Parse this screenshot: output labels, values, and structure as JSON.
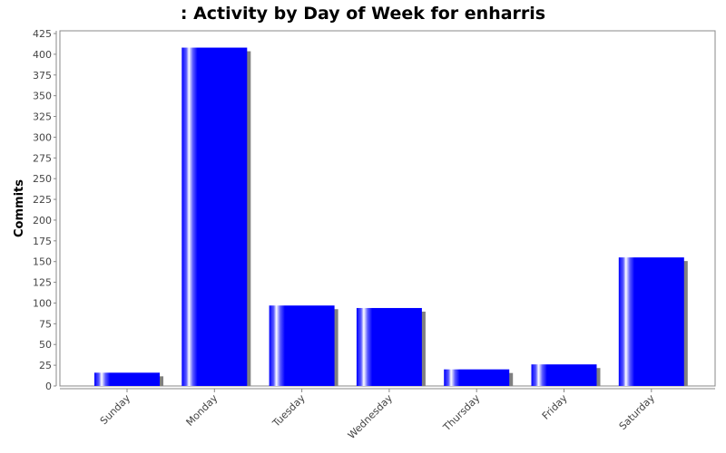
{
  "chart_data": {
    "type": "bar",
    "title": ": Activity by Day of Week for enharris",
    "xlabel": "",
    "ylabel": "Commits",
    "categories": [
      "Sunday",
      "Monday",
      "Tuesday",
      "Wednesday",
      "Thursday",
      "Friday",
      "Saturday"
    ],
    "values": [
      16,
      408,
      97,
      94,
      20,
      26,
      155
    ],
    "ylim": [
      0,
      425
    ],
    "yticks": [
      0,
      25,
      50,
      75,
      100,
      125,
      150,
      175,
      200,
      225,
      250,
      275,
      300,
      325,
      350,
      375,
      400,
      425
    ],
    "grid": false,
    "legend": "none",
    "bar_color": "#0000ff",
    "shadow_color": "#808080"
  }
}
